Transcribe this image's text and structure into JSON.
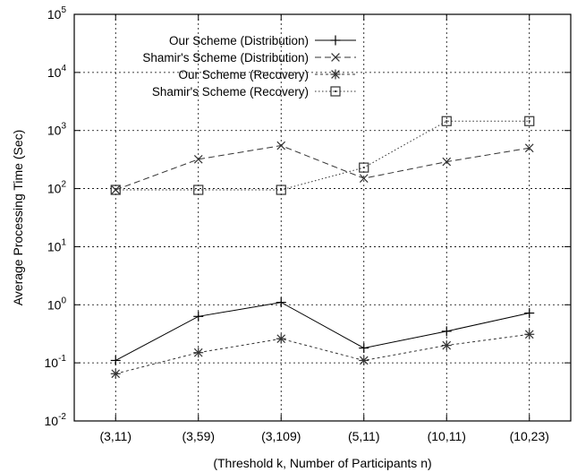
{
  "chart_data": {
    "type": "line",
    "title": "",
    "xlabel": "(Threshold k, Number of Participants n)",
    "ylabel": "Average Processing Time (Sec)",
    "yscale": "log",
    "ylim": [
      0.01,
      100000
    ],
    "yticks": [
      {
        "value": 0.01,
        "base": "10",
        "exp": "-2"
      },
      {
        "value": 0.1,
        "base": "10",
        "exp": "-1"
      },
      {
        "value": 1,
        "base": "10",
        "exp": "0"
      },
      {
        "value": 10,
        "base": "10",
        "exp": "1"
      },
      {
        "value": 100,
        "base": "10",
        "exp": "2"
      },
      {
        "value": 1000,
        "base": "10",
        "exp": "3"
      },
      {
        "value": 10000,
        "base": "10",
        "exp": "4"
      },
      {
        "value": 100000,
        "base": "10",
        "exp": "5"
      }
    ],
    "categories": [
      "(3,11)",
      "(3,59)",
      "(3,109)",
      "(5,11)",
      "(10,11)",
      "(10,23)"
    ],
    "grid": true,
    "legend_position": "top-left",
    "series": [
      {
        "name": "Our Scheme (Distribution)",
        "values": [
          0.11,
          0.63,
          1.1,
          0.18,
          0.35,
          0.72
        ],
        "marker": "plus",
        "dash": "",
        "color": "#000000"
      },
      {
        "name": "Shamir's Scheme (Distribution)",
        "values": [
          95,
          320,
          550,
          150,
          290,
          500
        ],
        "marker": "cross",
        "dash": "7,4",
        "color": "#333333"
      },
      {
        "name": "Our Scheme (Recovery)",
        "values": [
          0.065,
          0.15,
          0.26,
          0.11,
          0.2,
          0.31
        ],
        "marker": "star",
        "dash": "3,3",
        "color": "#333333"
      },
      {
        "name": "Shamir's Scheme (Recovery)",
        "values": [
          95,
          95,
          95,
          230,
          1450,
          1450
        ],
        "marker": "square",
        "dash": "1.5,2.5",
        "color": "#333333"
      }
    ]
  }
}
